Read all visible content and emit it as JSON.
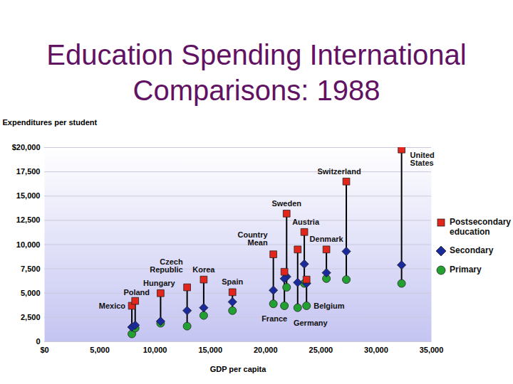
{
  "chart_data": {
    "type": "scatter",
    "title": "Education Spending International Comparisons: 1988",
    "x_label": "GDP per capita",
    "y_label": "Expenditures per student",
    "x": [
      7900,
      8200,
      10500,
      12900,
      14400,
      17000,
      20700,
      21900,
      21700,
      23500,
      22900,
      23700,
      25500,
      27300,
      32300
    ],
    "point_labels": [
      "Mexico",
      "Poland",
      "Hungary",
      "Czech Republic",
      "Korea",
      "Spain",
      "Country Mean",
      "Sweden",
      "France",
      "Austria",
      "Germany",
      "Belgium",
      "Denmark",
      "Switzerland",
      "United States"
    ],
    "series": [
      {
        "name": "Postsecondary education",
        "color": "#e3261b",
        "marker": "square",
        "values": [
          3700,
          4200,
          5000,
          5600,
          6400,
          5100,
          9000,
          13200,
          7200,
          11300,
          9500,
          6400,
          9500,
          16500,
          19800
        ]
      },
      {
        "name": "Secondary",
        "color": "#1a2a9a",
        "marker": "diamond",
        "values": [
          1500,
          1700,
          2100,
          3200,
          3500,
          4100,
          5300,
          6700,
          6500,
          8000,
          6100,
          6000,
          7100,
          9300,
          7900
        ]
      },
      {
        "name": "Primary",
        "color": "#23a032",
        "marker": "circle",
        "values": [
          800,
          1400,
          1900,
          1600,
          2700,
          3200,
          3900,
          5600,
          3700,
          6000,
          3500,
          3700,
          6500,
          6400,
          6000
        ]
      }
    ],
    "xlim": [
      0,
      35000
    ],
    "xticks": [
      {
        "value": 0,
        "label": "$0"
      },
      {
        "value": 5000,
        "label": "5,000"
      },
      {
        "value": 10000,
        "label": "10,000"
      },
      {
        "value": 15000,
        "label": "15,000"
      },
      {
        "value": 20000,
        "label": "20,000"
      },
      {
        "value": 25000,
        "label": "25,000"
      },
      {
        "value": 30000,
        "label": "30,000"
      },
      {
        "value": 35000,
        "label": "35,000"
      }
    ],
    "ylim": [
      0,
      20000
    ],
    "yticks": [
      0,
      {
        "value": 2500,
        "label": "2,500"
      },
      {
        "value": 5000,
        "label": "5,000"
      },
      {
        "value": 7500,
        "label": "7,500"
      },
      {
        "value": 10000,
        "label": "10,000"
      },
      {
        "value": 12500,
        "label": "12,500"
      },
      {
        "value": 15000,
        "label": "15,000"
      },
      {
        "value": 17500,
        "label": "17,500"
      },
      {
        "value": 20000,
        "label": "$20,000"
      }
    ],
    "grid": true,
    "legend": "right"
  }
}
